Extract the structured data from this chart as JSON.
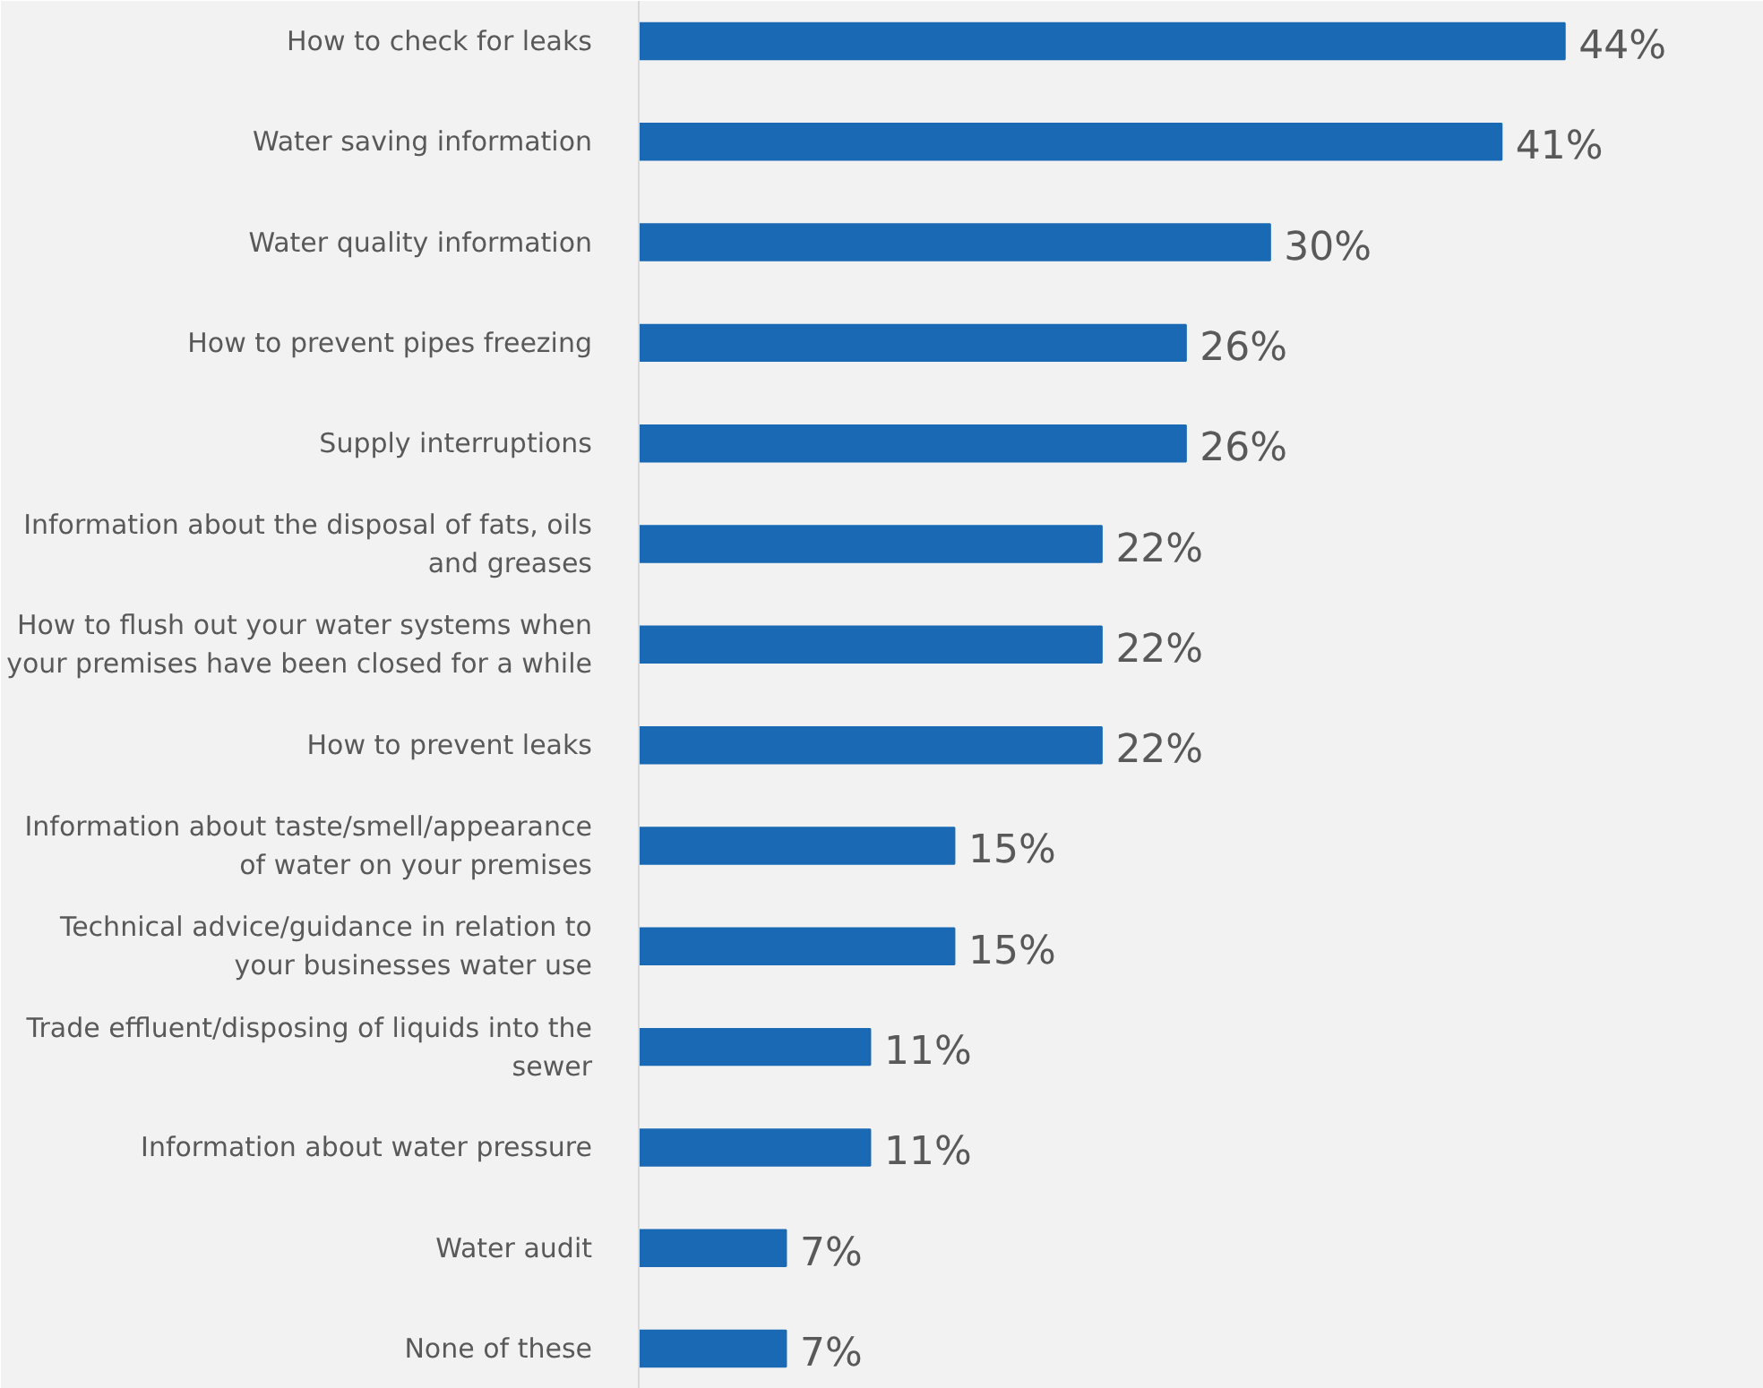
{
  "chart_data": {
    "type": "bar",
    "orientation": "horizontal",
    "color": "#1a69b4",
    "categories": [
      "How to check for leaks",
      "Water saving information",
      "Water quality information",
      "How to prevent pipes freezing",
      "Supply interruptions",
      "Information about the disposal of fats, oils\nand greases",
      "How to flush out your water systems when\nyour premises have been closed for a while",
      "How to prevent leaks",
      "Information about taste/smell/appearance\nof water on your premises",
      "Technical advice/guidance in relation to\nyour businesses water use",
      "Trade effluent/disposing of liquids into the\nsewer",
      "Information about water pressure",
      "Water audit",
      "None of these"
    ],
    "values": [
      44,
      41,
      30,
      26,
      26,
      22,
      22,
      22,
      15,
      15,
      11,
      11,
      7,
      7
    ],
    "value_labels": [
      "44%",
      "41%",
      "30%",
      "26%",
      "26%",
      "22%",
      "22%",
      "22%",
      "15%",
      "15%",
      "11%",
      "11%",
      "7%",
      "7%"
    ]
  }
}
